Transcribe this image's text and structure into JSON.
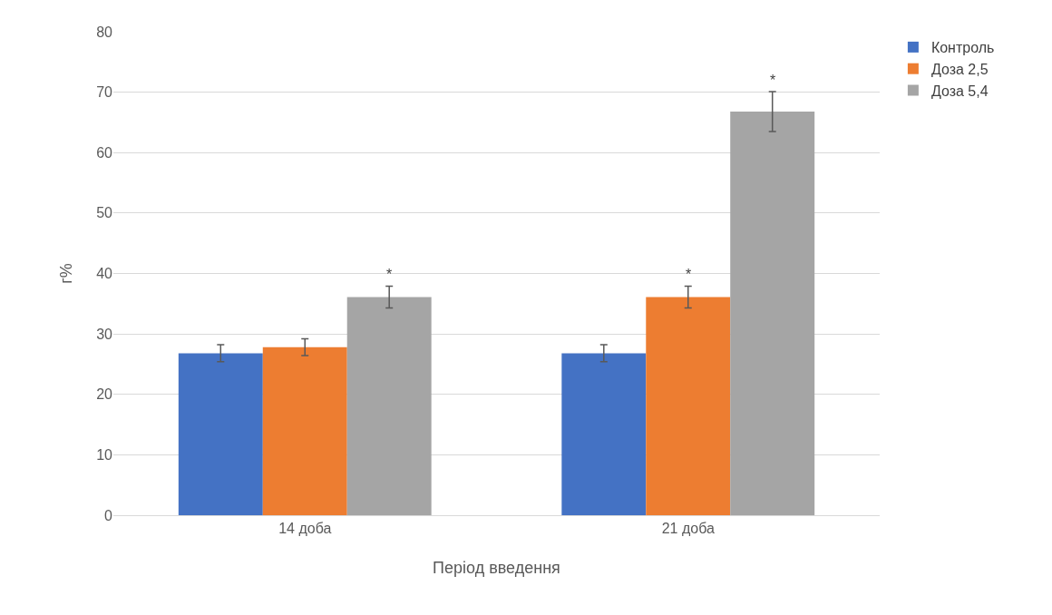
{
  "chart_data": {
    "type": "bar",
    "xlabel": "Період введення",
    "ylabel": "г%",
    "categories": [
      "14 доба",
      "21 доба"
    ],
    "series": [
      {
        "name": "Контроль",
        "color": "#4472c4",
        "values": [
          26.8,
          26.8
        ],
        "errors": [
          1.4,
          1.4
        ]
      },
      {
        "name": "Доза 2,5",
        "color": "#ed7d31",
        "values": [
          27.8,
          36.1
        ],
        "errors": [
          1.4,
          1.8
        ],
        "value_labels": [
          null,
          "*"
        ]
      },
      {
        "name": "Доза 5,4",
        "color": "#a5a5a5",
        "values": [
          36.1,
          66.8
        ],
        "errors": [
          1.8,
          3.3
        ],
        "value_labels": [
          "*",
          "*"
        ]
      }
    ],
    "ylim": [
      0,
      80
    ],
    "yticks": [
      0,
      10,
      20,
      30,
      40,
      50,
      60,
      70,
      80
    ],
    "grid": "y",
    "legend": "top right"
  }
}
